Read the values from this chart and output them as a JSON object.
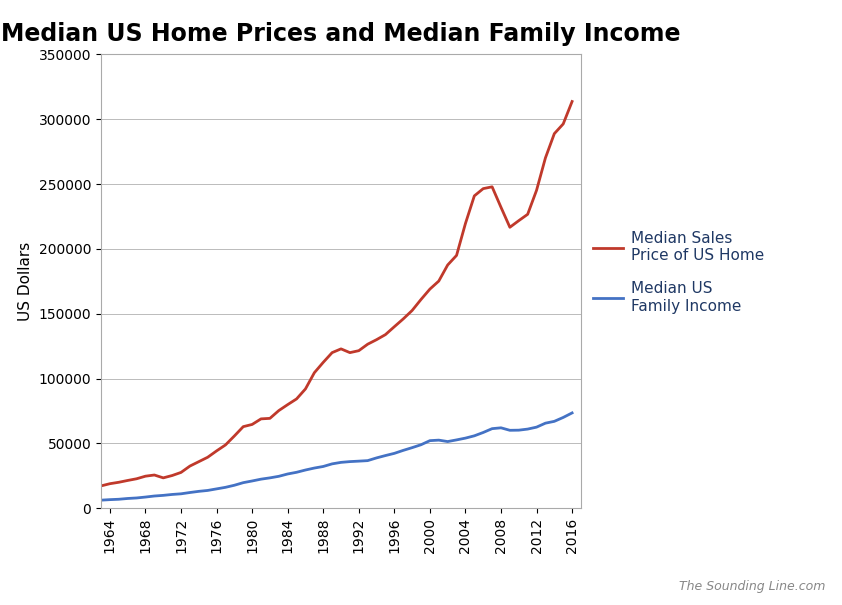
{
  "title": "Median US Home Prices and Median Family Income",
  "ylabel": "US Dollars",
  "background_color": "#ffffff",
  "plot_bg_color": "#ffffff",
  "grid_color": "#bbbbbb",
  "home_price_color": "#c0392b",
  "income_color": "#4472c4",
  "legend_home": "Median Sales\nPrice of US Home",
  "legend_income": "Median US\nFamily Income",
  "legend_text_color": "#1f3864",
  "watermark": "The Sounding Line.com",
  "years_home": [
    1963,
    1964,
    1965,
    1966,
    1967,
    1968,
    1969,
    1970,
    1971,
    1972,
    1973,
    1974,
    1975,
    1976,
    1977,
    1978,
    1979,
    1980,
    1981,
    1982,
    1983,
    1984,
    1985,
    1986,
    1987,
    1988,
    1989,
    1990,
    1991,
    1992,
    1993,
    1994,
    1995,
    1996,
    1997,
    1998,
    1999,
    2000,
    2001,
    2002,
    2003,
    2004,
    2005,
    2006,
    2007,
    2008,
    2009,
    2010,
    2011,
    2012,
    2013,
    2014,
    2015,
    2016
  ],
  "home_prices": [
    17200,
    18900,
    20000,
    21400,
    22700,
    24700,
    25600,
    23400,
    25200,
    27600,
    32500,
    35900,
    39300,
    44200,
    48800,
    55700,
    62900,
    64600,
    68900,
    69300,
    75300,
    79900,
    84300,
    92000,
    104500,
    112500,
    120000,
    122900,
    120000,
    121500,
    126500,
    130000,
    133900,
    140000,
    146000,
    152500,
    161000,
    169000,
    175200,
    187600,
    195000,
    219600,
    240900,
    246500,
    247900,
    232100,
    216700,
    221800,
    226700,
    245200,
    270200,
    288900,
    296400,
    313700
  ],
  "years_income": [
    1963,
    1964,
    1965,
    1966,
    1967,
    1968,
    1969,
    1970,
    1971,
    1972,
    1973,
    1974,
    1975,
    1976,
    1977,
    1978,
    1979,
    1980,
    1981,
    1982,
    1983,
    1984,
    1985,
    1986,
    1987,
    1988,
    1989,
    1990,
    1991,
    1992,
    1993,
    1994,
    1995,
    1996,
    1997,
    1998,
    1999,
    2000,
    2001,
    2002,
    2003,
    2004,
    2005,
    2006,
    2007,
    2008,
    2009,
    2010,
    2011,
    2012,
    2013,
    2014,
    2015,
    2016
  ],
  "incomes": [
    6200,
    6600,
    6900,
    7500,
    7900,
    8600,
    9400,
    9900,
    10600,
    11100,
    12100,
    13000,
    13700,
    14900,
    16100,
    17700,
    19700,
    21000,
    22400,
    23400,
    24600,
    26400,
    27700,
    29460,
    30970,
    32190,
    34200,
    35353,
    35939,
    36300,
    36700,
    38800,
    40611,
    42300,
    44600,
    46700,
    48950,
    52100,
    52500,
    51407,
    52680,
    54061,
    55832,
    58407,
    61355,
    62000,
    60088,
    60188,
    61021,
    62527,
    65587,
    67000,
    70000,
    73500
  ],
  "xlim": [
    1963,
    2017
  ],
  "ylim": [
    0,
    350000
  ],
  "yticks": [
    0,
    50000,
    100000,
    150000,
    200000,
    250000,
    300000,
    350000
  ],
  "xticks": [
    1964,
    1968,
    1972,
    1976,
    1980,
    1984,
    1988,
    1992,
    1996,
    2000,
    2004,
    2008,
    2012,
    2016
  ],
  "title_fontsize": 17,
  "axis_label_fontsize": 11,
  "tick_fontsize": 10,
  "legend_fontsize": 11,
  "watermark_fontsize": 9
}
